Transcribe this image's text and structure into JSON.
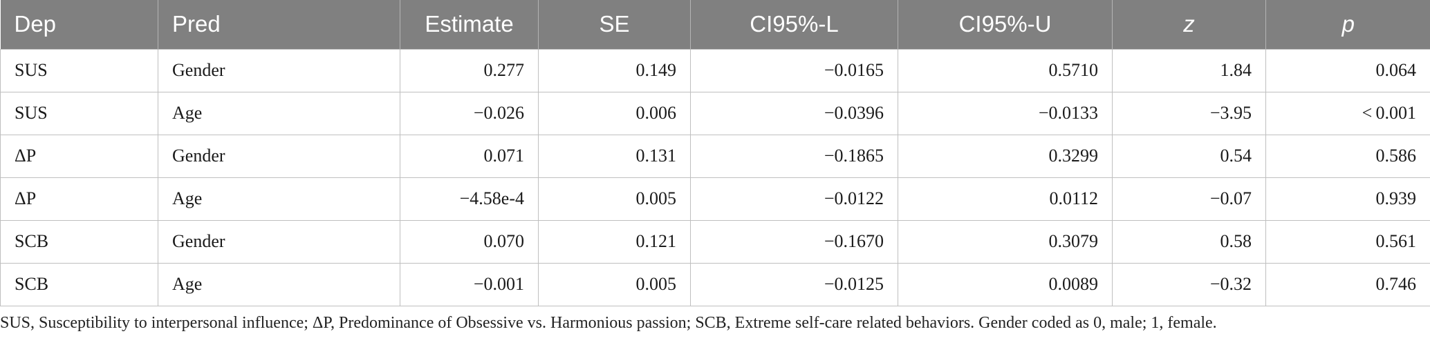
{
  "table": {
    "headers": [
      "Dep",
      "Pred",
      "Estimate",
      "SE",
      "CI95%-L",
      "CI95%-U",
      "z",
      "p"
    ],
    "rows": [
      [
        "SUS",
        "Gender",
        "0.277",
        "0.149",
        "−0.0165",
        "0.5710",
        "1.84",
        "0.064"
      ],
      [
        "SUS",
        "Age",
        "−0.026",
        "0.006",
        "−0.0396",
        "−0.0133",
        "−3.95",
        "< 0.001"
      ],
      [
        "ΔP",
        "Gender",
        "0.071",
        "0.131",
        "−0.1865",
        "0.3299",
        "0.54",
        "0.586"
      ],
      [
        "ΔP",
        "Age",
        "−4.58e-4",
        "0.005",
        "−0.0122",
        "0.0112",
        "−0.07",
        "0.939"
      ],
      [
        "SCB",
        "Gender",
        "0.070",
        "0.121",
        "−0.1670",
        "0.3079",
        "0.58",
        "0.561"
      ],
      [
        "SCB",
        "Age",
        "−0.001",
        "0.005",
        "−0.0125",
        "0.0089",
        "−0.32",
        "0.746"
      ]
    ]
  },
  "footnote": "SUS, Susceptibility to interpersonal influence; ΔP, Predominance of Obsessive vs. Harmonious passion; SCB, Extreme self-care related behaviors. Gender coded as 0, male; 1, female.",
  "colors": {
    "header_bg": "#808080",
    "header_text": "#ffffff",
    "grid": "#bfbfbf",
    "body_text": "#1a1a1a"
  }
}
